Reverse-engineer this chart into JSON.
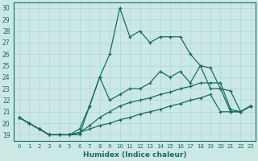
{
  "xlabel": "Humidex (Indice chaleur)",
  "bg_color": "#cce8e4",
  "line_color": "#1a6b60",
  "grid_color": "#aad8d4",
  "xlim": [
    -0.5,
    23.5
  ],
  "ylim": [
    18.5,
    30.5
  ],
  "xticks": [
    0,
    1,
    2,
    3,
    4,
    5,
    6,
    7,
    8,
    9,
    10,
    11,
    12,
    13,
    14,
    15,
    16,
    17,
    18,
    19,
    20,
    21,
    22,
    23
  ],
  "yticks": [
    19,
    20,
    21,
    22,
    23,
    24,
    25,
    26,
    27,
    28,
    29,
    30
  ],
  "series": [
    [
      20.5,
      20.0,
      19.5,
      19.0,
      19.0,
      19.0,
      19.0,
      21.5,
      24.0,
      26.0,
      30.0,
      27.5,
      28.0,
      27.0,
      27.5,
      27.5,
      27.5,
      26.0,
      25.0,
      24.8,
      23.0,
      21.0,
      21.0,
      21.5
    ],
    [
      20.5,
      20.0,
      19.5,
      19.0,
      19.0,
      19.0,
      19.5,
      21.5,
      24.0,
      22.0,
      22.5,
      23.0,
      23.0,
      23.5,
      24.5,
      24.0,
      24.5,
      23.5,
      25.0,
      23.0,
      23.0,
      22.8,
      21.0,
      21.5
    ],
    [
      20.5,
      20.0,
      19.5,
      19.0,
      19.0,
      19.0,
      19.2,
      19.8,
      20.5,
      21.0,
      21.5,
      21.8,
      22.0,
      22.2,
      22.5,
      22.7,
      23.0,
      23.2,
      23.5,
      23.5,
      23.5,
      21.2,
      21.0,
      21.5
    ],
    [
      20.5,
      20.0,
      19.5,
      19.0,
      19.0,
      19.0,
      19.2,
      19.5,
      19.8,
      20.0,
      20.3,
      20.5,
      20.8,
      21.0,
      21.2,
      21.5,
      21.7,
      22.0,
      22.2,
      22.5,
      21.0,
      21.0,
      21.0,
      21.5
    ]
  ],
  "markers": [
    true,
    true,
    true,
    true
  ]
}
